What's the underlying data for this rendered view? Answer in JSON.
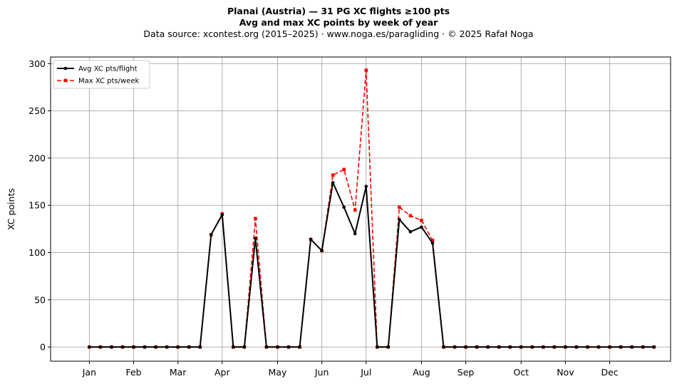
{
  "title_line1": "Planai (Austria)  —  31 PG XC flights ≥100 pts",
  "title_line2": "Avg and max XC points by week of year",
  "title_line3": "Data source: xcontest.org (2015–2025)  ·  www.noga.es/paragliding  ·  © 2025 Rafał Noga",
  "chart_data": {
    "type": "line",
    "ylabel": "XC points",
    "xlabel": "",
    "ylim": [
      -15,
      307
    ],
    "xlim": [
      -2.5,
      53.5
    ],
    "yticks": [
      0,
      50,
      100,
      150,
      200,
      250,
      300
    ],
    "grid": true,
    "legend_position": "top-left",
    "x_tick_weeks": [
      1,
      5,
      9,
      13,
      18,
      22,
      26,
      31,
      35,
      40,
      44,
      48
    ],
    "x_tick_labels": [
      "Jan",
      "Feb",
      "Mar",
      "Apr",
      "May",
      "Jun",
      "Jul",
      "Aug",
      "Sep",
      "Oct",
      "Nov",
      "Dec"
    ],
    "x": [
      1,
      2,
      3,
      4,
      5,
      6,
      7,
      8,
      9,
      10,
      11,
      12,
      13,
      14,
      15,
      16,
      17,
      18,
      19,
      20,
      21,
      22,
      23,
      24,
      25,
      26,
      27,
      28,
      29,
      30,
      31,
      32,
      33,
      34,
      35,
      36,
      37,
      38,
      39,
      40,
      41,
      42,
      43,
      44,
      45,
      46,
      47,
      48,
      49,
      50,
      51,
      52
    ],
    "series": [
      {
        "name": "Avg XC pts/flight",
        "color": "#000000",
        "style": "solid",
        "marker": "circle",
        "values": [
          0,
          0,
          0,
          0,
          0,
          0,
          0,
          0,
          0,
          0,
          0,
          119,
          140,
          0,
          0,
          115,
          0,
          0,
          0,
          0,
          114,
          102,
          174,
          148,
          120,
          170,
          0,
          0,
          135,
          122,
          127,
          110,
          0,
          0,
          0,
          0,
          0,
          0,
          0,
          0,
          0,
          0,
          0,
          0,
          0,
          0,
          0,
          0,
          0,
          0,
          0,
          0
        ]
      },
      {
        "name": "Max XC pts/week",
        "color": "#ff0000",
        "style": "dashed",
        "marker": "square",
        "values": [
          0,
          0,
          0,
          0,
          0,
          0,
          0,
          0,
          0,
          0,
          0,
          119,
          141,
          0,
          0,
          136,
          0,
          0,
          0,
          0,
          114,
          102,
          182,
          188,
          145,
          293,
          0,
          0,
          148,
          139,
          134,
          113,
          0,
          0,
          0,
          0,
          0,
          0,
          0,
          0,
          0,
          0,
          0,
          0,
          0,
          0,
          0,
          0,
          0,
          0,
          0,
          0
        ]
      }
    ]
  }
}
